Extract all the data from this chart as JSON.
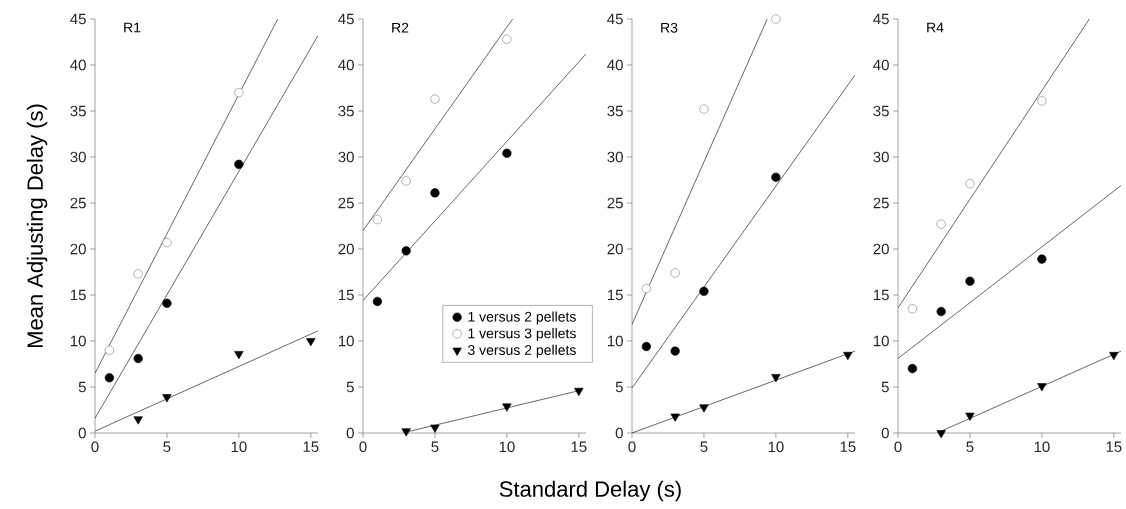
{
  "chart_data": [
    {
      "type": "scatter",
      "title": "R1",
      "ylabel": "Mean Adjusting Delay (s)",
      "xlim": [
        0,
        15.5
      ],
      "ylim": [
        0,
        45
      ],
      "xticks": [
        0,
        5,
        10,
        15
      ],
      "yticks": [
        0,
        5,
        10,
        15,
        20,
        25,
        30,
        35,
        40,
        45
      ],
      "grid": false,
      "legend": false,
      "series": [
        {
          "marker": "circle",
          "color": "#000000",
          "x": [
            1,
            3,
            5,
            10
          ],
          "values": [
            6.0,
            8.1,
            14.1,
            29.2
          ]
        },
        {
          "marker": "circle",
          "color": "#ffffff",
          "x": [
            1,
            3,
            5,
            10
          ],
          "values": [
            9.0,
            17.3,
            20.7,
            37.0
          ]
        },
        {
          "marker": "triangle",
          "color": "#000000",
          "x": [
            3,
            5,
            10,
            15
          ],
          "values": [
            1.5,
            3.9,
            8.6,
            10.0
          ]
        },
        {
          "type": "line",
          "marker": "none",
          "color": "#000000",
          "x": [
            0,
            12.7
          ],
          "values": [
            6.5,
            45
          ]
        },
        {
          "type": "line",
          "marker": "none",
          "color": "#000000",
          "x": [
            0,
            15.5
          ],
          "values": [
            1.6,
            43.2
          ]
        },
        {
          "type": "line",
          "marker": "none",
          "color": "#000000",
          "x": [
            0,
            15.5
          ],
          "values": [
            0.2,
            11.1
          ]
        }
      ]
    },
    {
      "type": "scatter",
      "title": "R2",
      "xlabel": "Standard Delay (s)",
      "xlim": [
        0,
        15.5
      ],
      "ylim": [
        0,
        45
      ],
      "xticks": [
        0,
        5,
        10,
        15
      ],
      "yticks": [
        0,
        5,
        10,
        15,
        20,
        25,
        30,
        35,
        40,
        45
      ],
      "grid": false,
      "legend": "bottom right",
      "series": [
        {
          "name": "1 versus 2 pellets",
          "marker": "circle",
          "color": "#000000",
          "x": [
            1,
            3,
            5,
            10
          ],
          "values": [
            14.3,
            19.8,
            26.1,
            30.4
          ]
        },
        {
          "name": "1 versus 3 pellets",
          "marker": "circle",
          "color": "#ffffff",
          "x": [
            1,
            3,
            5,
            10
          ],
          "values": [
            23.2,
            27.4,
            36.3,
            42.8
          ]
        },
        {
          "name": "3 versus 2 pellets",
          "marker": "triangle",
          "color": "#000000",
          "x": [
            3,
            5,
            10,
            15
          ],
          "values": [
            0.2,
            0.6,
            2.9,
            4.6
          ]
        },
        {
          "type": "line",
          "marker": "none",
          "color": "#000000",
          "x": [
            0,
            10.4
          ],
          "values": [
            22.0,
            45
          ]
        },
        {
          "type": "line",
          "marker": "none",
          "color": "#000000",
          "x": [
            0,
            15.5
          ],
          "values": [
            14.4,
            41.2
          ]
        },
        {
          "type": "line",
          "marker": "none",
          "color": "#000000",
          "x": [
            3,
            15
          ],
          "values": [
            0.1,
            4.6
          ]
        }
      ]
    },
    {
      "type": "scatter",
      "title": "R3",
      "xlim": [
        0,
        15.5
      ],
      "ylim": [
        0,
        45
      ],
      "xticks": [
        0,
        5,
        10,
        15
      ],
      "yticks": [
        0,
        5,
        10,
        15,
        20,
        25,
        30,
        35,
        40,
        45
      ],
      "grid": false,
      "legend": false,
      "series": [
        {
          "marker": "circle",
          "color": "#000000",
          "x": [
            1,
            3,
            5,
            10
          ],
          "values": [
            9.4,
            8.9,
            15.4,
            27.8
          ]
        },
        {
          "marker": "circle",
          "color": "#ffffff",
          "x": [
            1,
            3,
            5,
            10
          ],
          "values": [
            15.7,
            17.4,
            35.2,
            45.0
          ]
        },
        {
          "marker": "triangle",
          "color": "#000000",
          "x": [
            3,
            5,
            10,
            15
          ],
          "values": [
            1.8,
            2.8,
            6.1,
            8.5
          ]
        },
        {
          "type": "line",
          "marker": "none",
          "color": "#000000",
          "x": [
            0,
            9.4
          ],
          "values": [
            11.8,
            45
          ]
        },
        {
          "type": "line",
          "marker": "none",
          "color": "#000000",
          "x": [
            0,
            15.5
          ],
          "values": [
            4.9,
            38.9
          ]
        },
        {
          "type": "line",
          "marker": "none",
          "color": "#000000",
          "x": [
            0,
            15.5
          ],
          "values": [
            0.0,
            8.9
          ]
        }
      ]
    },
    {
      "type": "scatter",
      "title": "R4",
      "xlim": [
        0,
        15.5
      ],
      "ylim": [
        0,
        45
      ],
      "xticks": [
        0,
        5,
        10,
        15
      ],
      "yticks": [
        0,
        5,
        10,
        15,
        20,
        25,
        30,
        35,
        40,
        45
      ],
      "grid": false,
      "legend": false,
      "series": [
        {
          "marker": "circle",
          "color": "#000000",
          "x": [
            1,
            3,
            5,
            10
          ],
          "values": [
            7.0,
            13.2,
            16.5,
            18.9
          ]
        },
        {
          "marker": "circle",
          "color": "#ffffff",
          "x": [
            1,
            3,
            5,
            10
          ],
          "values": [
            13.5,
            22.7,
            27.1,
            36.1
          ]
        },
        {
          "marker": "triangle",
          "color": "#000000",
          "x": [
            3,
            5,
            10,
            15
          ],
          "values": [
            0.0,
            1.9,
            5.1,
            8.5
          ]
        },
        {
          "type": "line",
          "marker": "none",
          "color": "#000000",
          "x": [
            0,
            13.3
          ],
          "values": [
            13.6,
            45
          ]
        },
        {
          "type": "line",
          "marker": "none",
          "color": "#000000",
          "x": [
            0,
            15.5
          ],
          "values": [
            8.1,
            26.9
          ]
        },
        {
          "type": "line",
          "marker": "none",
          "color": "#000000",
          "x": [
            3,
            15.5
          ],
          "values": [
            0.2,
            8.9
          ]
        }
      ]
    }
  ]
}
